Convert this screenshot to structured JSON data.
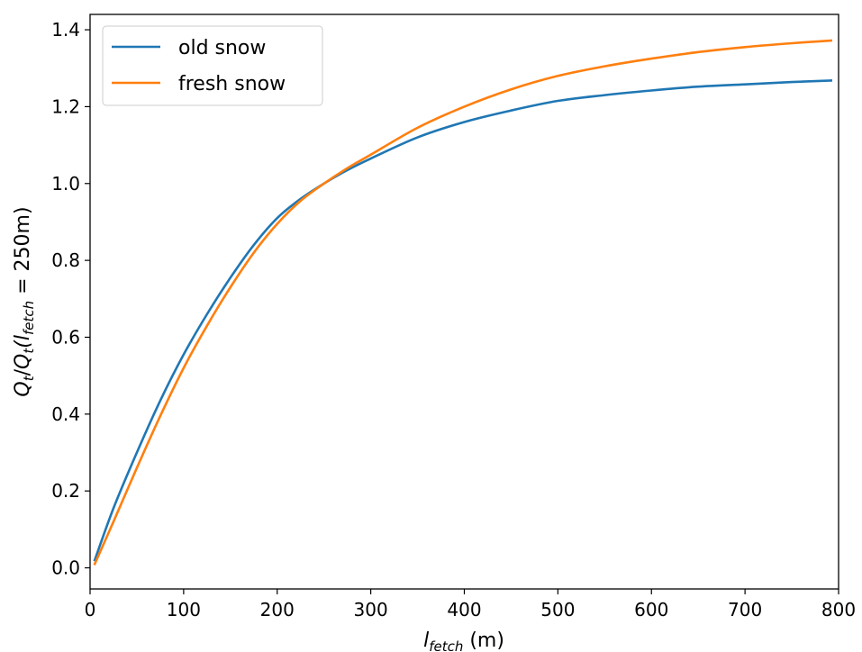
{
  "chart_data": {
    "type": "line",
    "title": "",
    "xlabel": {
      "main": "l",
      "sub": "fetch",
      "rest": " (m)"
    },
    "ylabel": {
      "q1": "Q",
      "t1": "t",
      "slash": "/",
      "q2": "Q",
      "t2": "t",
      "open": "(l",
      "fsub": "fetch",
      "rest": " = 250m)"
    },
    "xlim": [
      0,
      800
    ],
    "ylim": [
      -0.055,
      1.44
    ],
    "xticks": [
      0,
      100,
      200,
      300,
      400,
      500,
      600,
      700,
      800
    ],
    "xtick_labels": [
      "0",
      "100",
      "200",
      "300",
      "400",
      "500",
      "600",
      "700",
      "800"
    ],
    "yticks": [
      0.0,
      0.2,
      0.4,
      0.6,
      0.8,
      1.0,
      1.2,
      1.4
    ],
    "ytick_labels": [
      "0.0",
      "0.2",
      "0.4",
      "0.6",
      "0.8",
      "1.0",
      "1.2",
      "1.4"
    ],
    "grid": false,
    "legend_position": "top-left",
    "series": [
      {
        "name": "old snow",
        "color": "#1f77b4",
        "x": [
          5,
          25,
          50,
          75,
          100,
          125,
          150,
          175,
          200,
          225,
          250,
          275,
          300,
          350,
          400,
          450,
          500,
          550,
          600,
          650,
          700,
          750,
          792
        ],
        "y": [
          0.02,
          0.155,
          0.3,
          0.435,
          0.555,
          0.66,
          0.755,
          0.84,
          0.91,
          0.96,
          1.0,
          1.035,
          1.065,
          1.12,
          1.16,
          1.19,
          1.215,
          1.23,
          1.242,
          1.252,
          1.258,
          1.264,
          1.268
        ]
      },
      {
        "name": "fresh snow",
        "color": "#ff7f0e",
        "x": [
          5,
          25,
          50,
          75,
          100,
          125,
          150,
          175,
          200,
          225,
          250,
          275,
          300,
          350,
          400,
          450,
          500,
          550,
          600,
          650,
          700,
          750,
          792
        ],
        "y": [
          0.01,
          0.12,
          0.26,
          0.395,
          0.52,
          0.63,
          0.73,
          0.82,
          0.895,
          0.955,
          1.0,
          1.04,
          1.075,
          1.145,
          1.2,
          1.245,
          1.28,
          1.305,
          1.325,
          1.342,
          1.355,
          1.365,
          1.372
        ]
      }
    ]
  }
}
